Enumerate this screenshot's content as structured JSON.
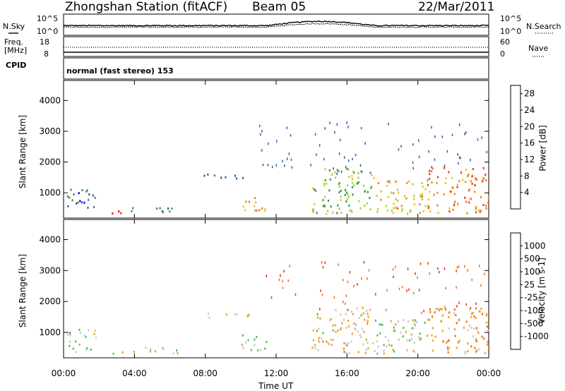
{
  "header": {
    "station": "Zhongshan Station (fitACF)",
    "beam": "Beam 05",
    "date": "22/Mar/2011"
  },
  "top_panel": {
    "nsky_label": "N.Sky",
    "nsearch_label": "N.Search",
    "left_ticks": [
      "10^5",
      "10^0"
    ],
    "right_ticks": [
      "10^5",
      "10^0"
    ],
    "freq_label_line1": "Freq.",
    "freq_label_line2": "[MHz]",
    "freq_ticks": [
      "18",
      "8"
    ],
    "nave_label": "Nave",
    "nave_ticks": [
      "60",
      "0"
    ],
    "cpid_label": "CPID",
    "cpid_text": "normal (fast stereo) 153"
  },
  "x_axis": {
    "ticks": [
      "00:00",
      "04:00",
      "08:00",
      "12:00",
      "16:00",
      "20:00",
      "00:00"
    ],
    "label": "Time UT"
  },
  "colors": {
    "power": [
      "#0000ff",
      "#2b5faa",
      "#3a8a6a",
      "#2e9b4e",
      "#a8d230",
      "#f0c020",
      "#f08020",
      "#e84010",
      "#ff0000"
    ],
    "velocity": [
      "#1f3fb0",
      "#2f6fc0",
      "#2f8a6a",
      "#50c050",
      "#c8c8c8",
      "#f0a020",
      "#f07010",
      "#e82a10",
      "#ff0000"
    ]
  },
  "chart_data": [
    {
      "type": "heatmap",
      "name": "power",
      "ylabel": "Slant Range [km]",
      "y_ticks": [
        1000,
        2000,
        3000,
        4000
      ],
      "ylim": [
        180,
        4650
      ],
      "xlim": [
        0,
        24
      ],
      "colorbar": {
        "label": "Power [dB]",
        "ticks": [
          "4",
          "8",
          "12",
          "16",
          "20",
          "24",
          "28"
        ],
        "range": [
          0,
          30
        ]
      },
      "regions": [
        {
          "t": [
            0.1,
            1.8
          ],
          "r": [
            350,
            1100
          ],
          "v": 6
        },
        {
          "t": [
            2.6,
            4.2
          ],
          "r": [
            300,
            420
          ],
          "v": 28
        },
        {
          "t": [
            3.8,
            6.5
          ],
          "r": [
            300,
            500
          ],
          "v": 10
        },
        {
          "t": [
            7.8,
            10.5
          ],
          "r": [
            1450,
            1620
          ],
          "v": 6
        },
        {
          "t": [
            10.0,
            11.5
          ],
          "r": [
            400,
            900
          ],
          "v": 20
        },
        {
          "t": [
            14.0,
            17.5
          ],
          "r": [
            300,
            1800
          ],
          "v": 14
        },
        {
          "t": [
            17.5,
            20.5
          ],
          "r": [
            300,
            1400
          ],
          "v": 18
        },
        {
          "t": [
            20.5,
            24.0
          ],
          "r": [
            300,
            1800
          ],
          "v": 22
        }
      ]
    },
    {
      "type": "heatmap",
      "name": "velocity",
      "ylabel": "Slant Range [km]",
      "y_ticks": [
        1000,
        2000,
        3000,
        4000
      ],
      "ylim": [
        180,
        4650
      ],
      "xlim": [
        0,
        24
      ],
      "colorbar": {
        "label": "Velocity [m s-1]",
        "ticks": [
          "1000",
          "500",
          "100",
          "25",
          "-25",
          "-100",
          "-500",
          "-1000"
        ],
        "range": [
          -1000,
          1000
        ]
      },
      "regions": [
        {
          "t": [
            0.1,
            1.8
          ],
          "r": [
            350,
            1100
          ],
          "v": 100
        },
        {
          "t": [
            2.6,
            4.2
          ],
          "r": [
            300,
            420
          ],
          "v": 100
        },
        {
          "t": [
            3.8,
            6.5
          ],
          "r": [
            300,
            500
          ],
          "v": -100
        },
        {
          "t": [
            7.8,
            10.5
          ],
          "r": [
            1450,
            1620
          ],
          "v": 0
        },
        {
          "t": [
            10.0,
            11.5
          ],
          "r": [
            400,
            900
          ],
          "v": 100
        },
        {
          "t": [
            14.0,
            17.5
          ],
          "r": [
            300,
            1800
          ],
          "v": -100
        },
        {
          "t": [
            17.5,
            20.5
          ],
          "r": [
            300,
            1400
          ],
          "v": 0
        },
        {
          "t": [
            20.5,
            24.0
          ],
          "r": [
            300,
            1800
          ],
          "v": -300
        }
      ]
    }
  ]
}
